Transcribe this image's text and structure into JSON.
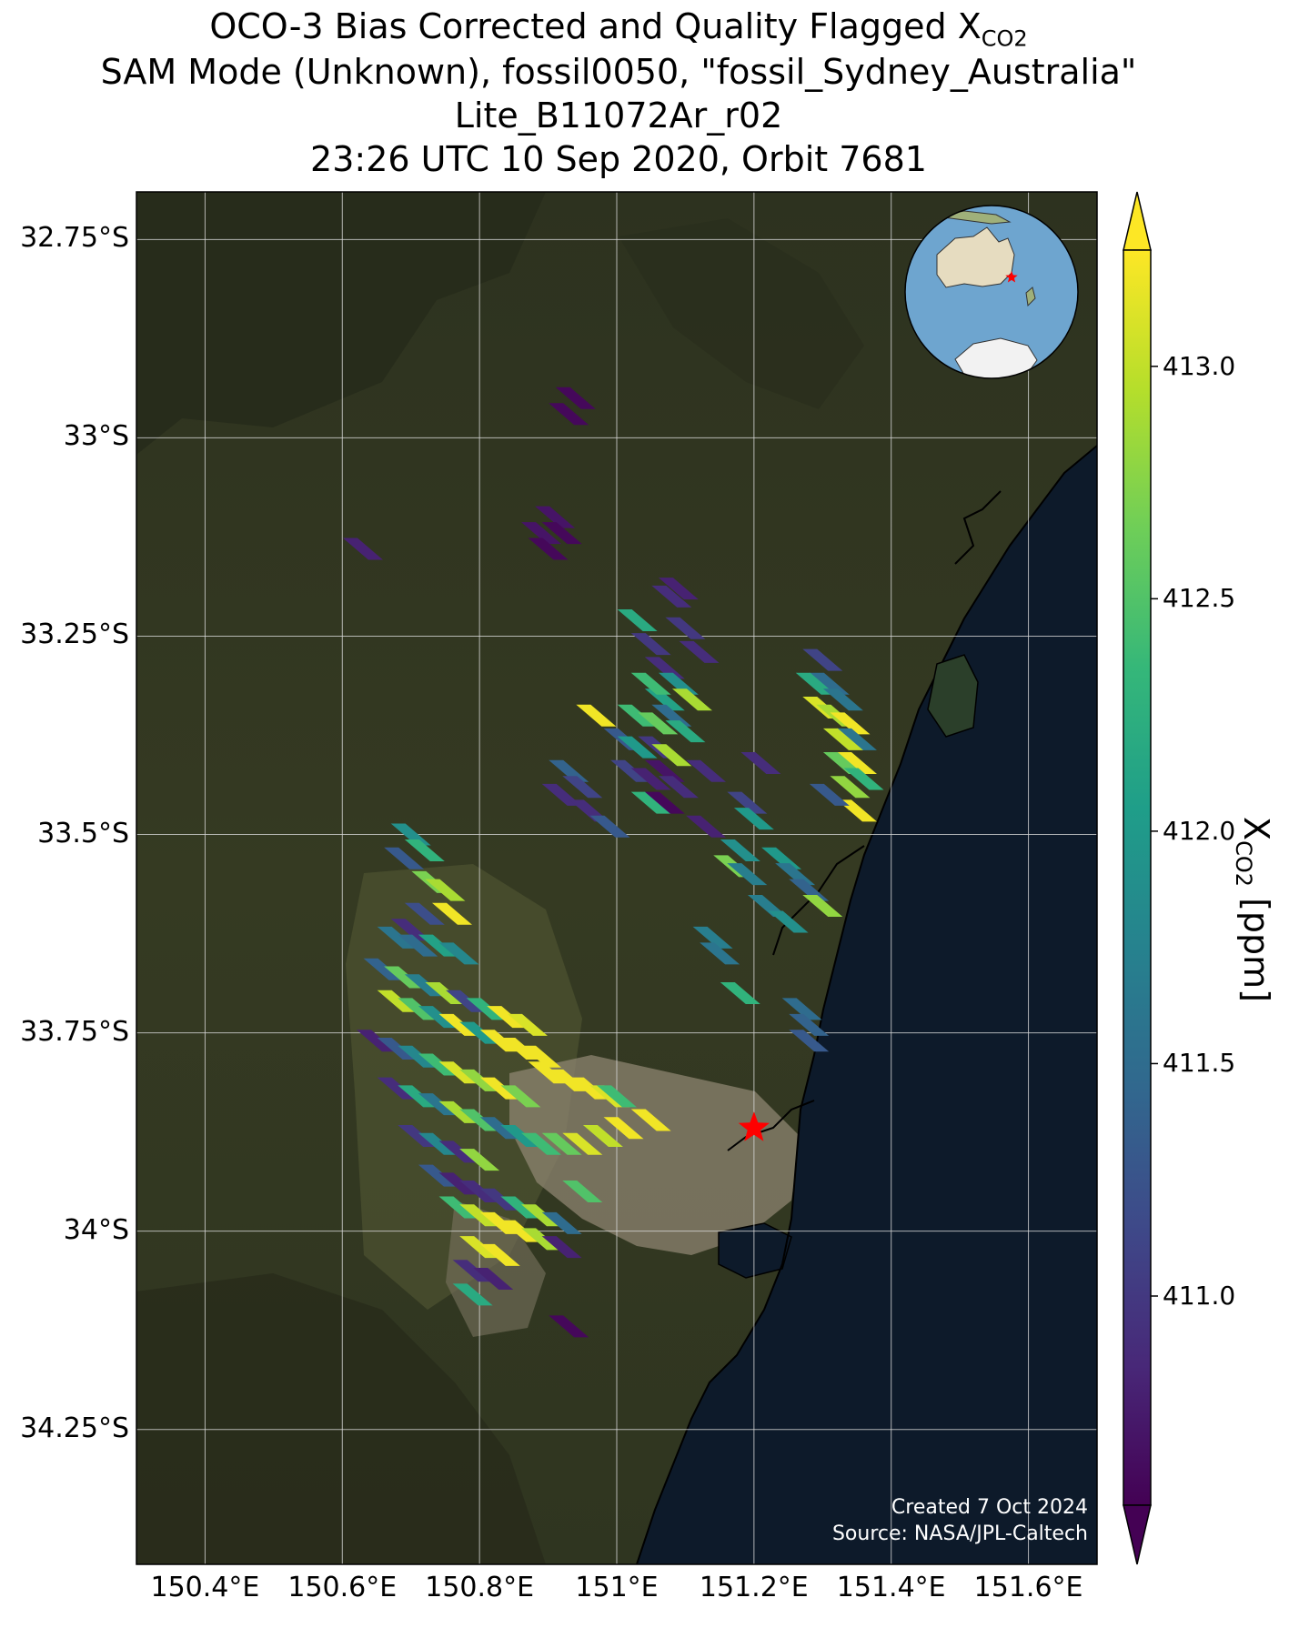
{
  "title": {
    "line1_prefix": "OCO-3 Bias Corrected and Quality Flagged X",
    "line1_sub": "CO2",
    "line2": "SAM Mode (Unknown), fossil0050, \"fossil_Sydney_Australia\"",
    "line3": "Lite_B11072Ar_r02",
    "line4": "23:26 UTC 10 Sep 2020, Orbit 7681"
  },
  "credits": {
    "created": "Created 7 Oct 2024",
    "source": "Source: NASA/JPL-Caltech"
  },
  "colors": {
    "land_dark": "#2f3520",
    "land_mid": "#4a4f2e",
    "urban": "#8d8470",
    "ocean": "#0d1a2a",
    "grid": "#d8d8d8",
    "target_star": "#ff0000",
    "viridis": [
      "#440154",
      "#482878",
      "#3e4989",
      "#31688e",
      "#26828e",
      "#1f9e89",
      "#35b779",
      "#6ece58",
      "#b5de2b",
      "#fde725"
    ]
  },
  "map": {
    "lon_range": [
      150.3,
      151.7
    ],
    "lat_range": [
      -34.42,
      -32.69
    ],
    "lon_ticks": [
      150.4,
      150.6,
      150.8,
      151.0,
      151.2,
      151.4,
      151.6
    ],
    "lon_tick_labels": [
      "150.4°E",
      "150.6°E",
      "150.8°E",
      "151°E",
      "151.2°E",
      "151.4°E",
      "151.6°E"
    ],
    "lat_ticks": [
      -32.75,
      -33.0,
      -33.25,
      -33.5,
      -33.75,
      -34.0,
      -34.25
    ],
    "lat_tick_labels": [
      "32.75°S",
      "33°S",
      "33.25°S",
      "33.5°S",
      "33.75°S",
      "34°S",
      "34.25°S"
    ],
    "target": {
      "name": "fossil_Sydney_Australia",
      "lon": 151.2,
      "lat": -33.87
    },
    "inset_globe": {
      "center_lon": 135,
      "center_lat": -45,
      "marker_lon": 151.2,
      "marker_lat": -33.87
    }
  },
  "colorbar": {
    "label_prefix": "X",
    "label_sub": "CO2",
    "label_suffix": " [ppm]",
    "vmin": 410.55,
    "vmax": 413.25,
    "extend": "both",
    "ticks": [
      411.0,
      411.5,
      412.0,
      412.5,
      413.0
    ],
    "tick_labels": [
      "411.0",
      "411.5",
      "412.0",
      "412.5",
      "413.0"
    ]
  },
  "chart_data": {
    "type": "scatter",
    "title": "OCO-3 Bias Corrected and Quality Flagged XCO2",
    "xlabel": "",
    "ylabel": "",
    "xlim": [
      150.3,
      151.7
    ],
    "ylim": [
      -34.42,
      -32.69
    ],
    "value_label": "XCO2 [ppm]",
    "series": [
      {
        "points": [
          [
            150.94,
            -32.95,
            410.6
          ],
          [
            150.93,
            -32.97,
            410.6
          ],
          [
            150.91,
            -33.1,
            410.7
          ],
          [
            150.92,
            -33.12,
            410.6
          ],
          [
            150.89,
            -33.12,
            410.7
          ],
          [
            150.9,
            -33.14,
            410.6
          ],
          [
            150.63,
            -33.14,
            410.8
          ],
          [
            151.09,
            -33.19,
            410.8
          ],
          [
            151.08,
            -33.2,
            410.9
          ],
          [
            151.1,
            -33.24,
            411.0
          ],
          [
            151.12,
            -33.27,
            410.9
          ],
          [
            151.03,
            -33.23,
            412.2
          ],
          [
            151.05,
            -33.26,
            411.0
          ],
          [
            151.07,
            -33.29,
            410.9
          ],
          [
            151.09,
            -33.31,
            411.9
          ],
          [
            151.07,
            -33.33,
            412.1
          ],
          [
            151.05,
            -33.31,
            412.4
          ],
          [
            151.11,
            -33.33,
            412.9
          ],
          [
            151.03,
            -33.35,
            412.4
          ],
          [
            151.06,
            -33.36,
            412.6
          ],
          [
            151.08,
            -33.35,
            411.5
          ],
          [
            151.1,
            -33.37,
            412.2
          ],
          [
            151.01,
            -33.38,
            411.3
          ],
          [
            151.03,
            -33.39,
            412.0
          ],
          [
            151.06,
            -33.39,
            411.0
          ],
          [
            151.08,
            -33.4,
            412.9
          ],
          [
            151.02,
            -33.42,
            411.1
          ],
          [
            151.05,
            -33.43,
            410.8
          ],
          [
            151.07,
            -33.42,
            410.7
          ],
          [
            151.09,
            -33.44,
            410.9
          ],
          [
            151.05,
            -33.46,
            412.3
          ],
          [
            151.07,
            -33.46,
            410.6
          ],
          [
            151.13,
            -33.42,
            410.9
          ],
          [
            150.97,
            -33.35,
            413.2
          ],
          [
            150.93,
            -33.42,
            411.4
          ],
          [
            150.95,
            -33.44,
            411.1
          ],
          [
            150.92,
            -33.45,
            410.9
          ],
          [
            150.96,
            -33.47,
            410.9
          ],
          [
            150.99,
            -33.49,
            411.3
          ],
          [
            151.13,
            -33.49,
            410.8
          ],
          [
            151.21,
            -33.41,
            410.9
          ],
          [
            151.19,
            -33.46,
            411.1
          ],
          [
            151.2,
            -33.48,
            412.0
          ],
          [
            151.18,
            -33.52,
            411.9
          ],
          [
            151.17,
            -33.54,
            412.7
          ],
          [
            151.19,
            -33.55,
            411.7
          ],
          [
            151.3,
            -33.28,
            411.1
          ],
          [
            151.31,
            -33.31,
            411.5
          ],
          [
            151.29,
            -33.31,
            412.2
          ],
          [
            151.33,
            -33.33,
            411.6
          ],
          [
            151.3,
            -33.34,
            413.1
          ],
          [
            151.32,
            -33.35,
            412.9
          ],
          [
            151.34,
            -33.36,
            413.2
          ],
          [
            151.35,
            -33.38,
            411.6
          ],
          [
            151.33,
            -33.38,
            413.0
          ],
          [
            151.35,
            -33.41,
            413.2
          ],
          [
            151.33,
            -33.41,
            412.6
          ],
          [
            151.36,
            -33.43,
            412.3
          ],
          [
            151.34,
            -33.44,
            412.8
          ],
          [
            151.35,
            -33.47,
            413.2
          ],
          [
            151.31,
            -33.45,
            411.3
          ],
          [
            151.24,
            -33.53,
            412.0
          ],
          [
            151.26,
            -33.55,
            411.6
          ],
          [
            151.28,
            -33.57,
            411.4
          ],
          [
            151.3,
            -33.59,
            412.8
          ],
          [
            151.22,
            -33.59,
            411.7
          ],
          [
            151.25,
            -33.61,
            411.9
          ],
          [
            151.14,
            -33.63,
            411.7
          ],
          [
            151.15,
            -33.65,
            411.6
          ],
          [
            151.18,
            -33.7,
            412.3
          ],
          [
            151.27,
            -33.72,
            411.5
          ],
          [
            151.28,
            -33.74,
            411.4
          ],
          [
            151.28,
            -33.76,
            411.3
          ],
          [
            150.7,
            -33.5,
            411.9
          ],
          [
            150.72,
            -33.52,
            412.3
          ],
          [
            150.69,
            -33.53,
            411.3
          ],
          [
            150.73,
            -33.56,
            412.7
          ],
          [
            150.75,
            -33.57,
            412.9
          ],
          [
            150.76,
            -33.6,
            413.2
          ],
          [
            150.72,
            -33.6,
            411.2
          ],
          [
            150.7,
            -33.62,
            410.9
          ],
          [
            150.68,
            -33.63,
            411.6
          ],
          [
            150.71,
            -33.64,
            411.5
          ],
          [
            150.74,
            -33.64,
            412.1
          ],
          [
            150.77,
            -33.65,
            411.8
          ],
          [
            150.66,
            -33.67,
            411.4
          ],
          [
            150.69,
            -33.68,
            412.6
          ],
          [
            150.72,
            -33.69,
            411.7
          ],
          [
            150.75,
            -33.7,
            412.9
          ],
          [
            150.78,
            -33.71,
            411.1
          ],
          [
            150.81,
            -33.72,
            412.3
          ],
          [
            150.84,
            -33.73,
            413.2
          ],
          [
            150.87,
            -33.74,
            413.1
          ],
          [
            150.68,
            -33.71,
            413.0
          ],
          [
            150.71,
            -33.72,
            412.5
          ],
          [
            150.74,
            -33.73,
            411.9
          ],
          [
            150.77,
            -33.74,
            413.2
          ],
          [
            150.8,
            -33.75,
            412.0
          ],
          [
            150.83,
            -33.76,
            413.2
          ],
          [
            150.86,
            -33.77,
            413.2
          ],
          [
            150.89,
            -33.78,
            413.2
          ],
          [
            150.65,
            -33.76,
            410.8
          ],
          [
            150.68,
            -33.77,
            411.3
          ],
          [
            150.71,
            -33.78,
            411.8
          ],
          [
            150.74,
            -33.79,
            412.4
          ],
          [
            150.77,
            -33.8,
            413.1
          ],
          [
            150.8,
            -33.81,
            412.8
          ],
          [
            150.83,
            -33.82,
            413.2
          ],
          [
            150.86,
            -33.83,
            412.7
          ],
          [
            150.9,
            -33.8,
            413.2
          ],
          [
            150.93,
            -33.81,
            413.2
          ],
          [
            150.96,
            -33.82,
            413.2
          ],
          [
            150.99,
            -33.83,
            413.1
          ],
          [
            150.68,
            -33.82,
            410.9
          ],
          [
            150.71,
            -33.83,
            412.2
          ],
          [
            150.74,
            -33.84,
            411.6
          ],
          [
            150.77,
            -33.85,
            412.9
          ],
          [
            150.8,
            -33.86,
            412.5
          ],
          [
            150.83,
            -33.87,
            411.5
          ],
          [
            150.86,
            -33.88,
            412.0
          ],
          [
            150.89,
            -33.89,
            412.4
          ],
          [
            150.92,
            -33.89,
            412.6
          ],
          [
            150.95,
            -33.89,
            413.1
          ],
          [
            150.98,
            -33.88,
            413.0
          ],
          [
            151.01,
            -33.87,
            413.2
          ],
          [
            150.71,
            -33.88,
            411.0
          ],
          [
            150.74,
            -33.89,
            411.8
          ],
          [
            150.77,
            -33.9,
            410.9
          ],
          [
            150.8,
            -33.91,
            412.8
          ],
          [
            150.74,
            -33.93,
            411.3
          ],
          [
            150.77,
            -33.94,
            410.8
          ],
          [
            150.8,
            -33.95,
            410.9
          ],
          [
            150.83,
            -33.96,
            411.0
          ],
          [
            150.86,
            -33.97,
            412.3
          ],
          [
            150.89,
            -33.98,
            412.9
          ],
          [
            150.92,
            -33.99,
            411.5
          ],
          [
            150.95,
            -33.95,
            412.5
          ],
          [
            150.77,
            -33.97,
            412.4
          ],
          [
            150.8,
            -33.98,
            413.0
          ],
          [
            150.83,
            -33.99,
            413.2
          ],
          [
            150.86,
            -34.0,
            413.2
          ],
          [
            150.89,
            -34.01,
            412.9
          ],
          [
            150.92,
            -34.02,
            410.8
          ],
          [
            150.8,
            -34.02,
            413.1
          ],
          [
            150.83,
            -34.03,
            413.2
          ],
          [
            151.0,
            -33.83,
            412.4
          ],
          [
            151.05,
            -33.86,
            413.2
          ],
          [
            150.79,
            -34.05,
            410.9
          ],
          [
            150.82,
            -34.06,
            410.8
          ],
          [
            150.79,
            -34.08,
            412.2
          ],
          [
            150.93,
            -34.12,
            410.6
          ]
        ]
      }
    ]
  }
}
